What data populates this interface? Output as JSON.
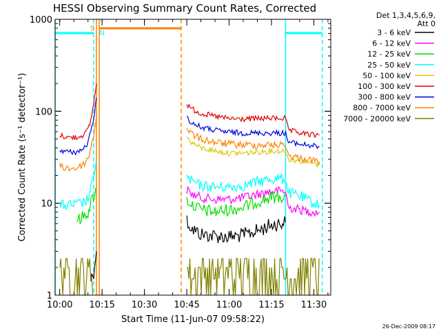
{
  "chart_data": {
    "type": "line",
    "title": "HESSI Observing Summary Count Rates, Corrected",
    "xlabel": "Start Time (11-Jun-07 09:58:22)",
    "ylabel": "Corrected Count Rate (s⁻¹ detector⁻¹)",
    "yscale": "log",
    "ylim": [
      1,
      1000
    ],
    "xlim": [
      "09:58:22",
      "11:36:00"
    ],
    "x_ticks": [
      "10:00",
      "10:15",
      "10:30",
      "10:45",
      "11:00",
      "11:15",
      "11:30"
    ],
    "y_ticks": [
      "1",
      "10",
      "100",
      "1000"
    ],
    "grid": false,
    "legend": {
      "placement": "right",
      "header_line1": "Det 1,3,4,5,6,9,",
      "header_line2": "Att 0"
    },
    "series": [
      {
        "name": "3 - 6 keV",
        "color": "#000000",
        "segments": [
          {
            "x": [
              "10:11",
              "10:12",
              "10:13"
            ],
            "y": [
              1.5,
              1.8,
              3.0
            ]
          },
          {
            "x": [
              "10:45",
              "10:47",
              "10:50",
              "10:55",
              "11:00",
              "11:05",
              "11:10",
              "11:15",
              "11:20"
            ],
            "y": [
              6.5,
              5.2,
              4.6,
              4.4,
              4.3,
              4.5,
              5.0,
              5.8,
              6.2
            ]
          }
        ]
      },
      {
        "name": "6 - 12 keV",
        "color": "#ff00ff",
        "segments": [
          {
            "x": [
              "10:45",
              "10:47",
              "10:50",
              "10:55",
              "11:00",
              "11:05",
              "11:10",
              "11:15",
              "11:20",
              "11:21",
              "11:25",
              "11:30",
              "11:32"
            ],
            "y": [
              14.0,
              12.5,
              11.5,
              11.0,
              11.0,
              11.5,
              12.5,
              13.5,
              13.5,
              9.0,
              8.5,
              8.0,
              8.0
            ]
          }
        ]
      },
      {
        "name": "12 - 25 keV",
        "color": "#00dd00",
        "segments": [
          {
            "x": [
              "10:06",
              "10:08",
              "10:10",
              "10:11",
              "10:12",
              "10:13"
            ],
            "y": [
              6.5,
              7.0,
              8.0,
              10.0,
              12.0,
              14.0
            ]
          },
          {
            "x": [
              "10:45",
              "10:47",
              "10:50",
              "10:55",
              "11:00",
              "11:05",
              "11:10",
              "11:15",
              "11:20"
            ],
            "y": [
              11.0,
              9.5,
              8.5,
              8.0,
              8.5,
              9.0,
              10.5,
              11.5,
              12.0
            ]
          }
        ]
      },
      {
        "name": "25 - 50 keV",
        "color": "#00ffff",
        "segments": [
          {
            "x": [
              "10:00",
              "10:03",
              "10:06",
              "10:08",
              "10:10",
              "10:11",
              "10:12",
              "10:13"
            ],
            "y": [
              9.5,
              9.5,
              9.7,
              10.0,
              11.0,
              14.0,
              20.0,
              30.0
            ]
          },
          {
            "x": [
              "10:45",
              "10:47",
              "10:50",
              "10:55",
              "11:00",
              "11:05",
              "11:10",
              "11:15",
              "11:20",
              "11:21",
              "11:25",
              "11:30",
              "11:32"
            ],
            "y": [
              19.0,
              17.0,
              15.5,
              15.0,
              15.0,
              15.5,
              17.0,
              18.5,
              18.5,
              13.0,
              12.0,
              10.0,
              9.5
            ]
          }
        ]
      },
      {
        "name": "50 - 100 keV",
        "color": "#d8c800",
        "segments": [
          {
            "x": [
              "10:45",
              "10:47",
              "10:50",
              "10:55",
              "11:00",
              "11:05",
              "11:10",
              "11:15",
              "11:20",
              "11:21",
              "11:25",
              "11:30",
              "11:32"
            ],
            "y": [
              52.0,
              45.0,
              40.0,
              37.0,
              35.0,
              35.0,
              36.0,
              37.0,
              37.0,
              30.0,
              29.0,
              27.0,
              26.0
            ]
          }
        ]
      },
      {
        "name": "100 - 300 keV",
        "color": "#dd0000",
        "segments": [
          {
            "x": [
              "10:00",
              "10:03",
              "10:06",
              "10:08",
              "10:10",
              "10:11",
              "10:12",
              "10:13"
            ],
            "y": [
              55.0,
              52.0,
              52.0,
              55.0,
              62.0,
              80.0,
              120.0,
              200.0
            ]
          },
          {
            "x": [
              "10:45",
              "10:47",
              "10:50",
              "10:55",
              "11:00",
              "11:05",
              "11:10",
              "11:15",
              "11:20",
              "11:21",
              "11:25",
              "11:30",
              "11:32"
            ],
            "y": [
              120.0,
              105.0,
              95.0,
              88.0,
              83.0,
              82.0,
              83.0,
              84.0,
              84.0,
              62.0,
              58.0,
              55.0,
              55.0
            ]
          }
        ]
      },
      {
        "name": "300 - 800 keV",
        "color": "#0000dd",
        "segments": [
          {
            "x": [
              "10:00",
              "10:03",
              "10:06",
              "10:08",
              "10:10",
              "10:11",
              "10:12",
              "10:13"
            ],
            "y": [
              38.0,
              36.0,
              36.0,
              38.0,
              45.0,
              60.0,
              85.0,
              140.0
            ]
          },
          {
            "x": [
              "10:45",
              "10:47",
              "10:50",
              "10:55",
              "11:00",
              "11:05",
              "11:10",
              "11:15",
              "11:20",
              "11:21",
              "11:25",
              "11:30",
              "11:32"
            ],
            "y": [
              85.0,
              74.0,
              67.0,
              62.0,
              59.0,
              58.0,
              58.0,
              58.0,
              58.0,
              46.0,
              44.0,
              42.0,
              41.0
            ]
          }
        ]
      },
      {
        "name": "800 - 7000 keV",
        "color": "#ff8000",
        "segments": [
          {
            "x": [
              "10:00",
              "10:03",
              "10:06",
              "10:08",
              "10:10",
              "10:11",
              "10:12",
              "10:13"
            ],
            "y": [
              25.0,
              24.0,
              24.0,
              26.0,
              30.0,
              40.0,
              55.0,
              90.0
            ]
          },
          {
            "x": [
              "10:45",
              "10:47",
              "10:50",
              "10:55",
              "11:00",
              "11:05",
              "11:10",
              "11:15",
              "11:20",
              "11:21",
              "11:25",
              "11:30",
              "11:32"
            ],
            "y": [
              65.0,
              56.0,
              50.0,
              46.0,
              44.0,
              43.0,
              43.0,
              43.0,
              43.0,
              33.0,
              31.0,
              29.0,
              28.0
            ]
          }
        ]
      },
      {
        "name": "7000 - 20000 keV",
        "color": "#808000",
        "segments": [
          {
            "x": [
              "10:00",
              "10:06",
              "10:12"
            ],
            "y": [
              1.5,
              1.5,
              1.5
            ]
          },
          {
            "x": [
              "10:45",
              "11:00",
              "11:15",
              "11:21",
              "11:32"
            ],
            "y": [
              1.5,
              1.5,
              1.5,
              1.5,
              1.5
            ]
          }
        ]
      }
    ],
    "annotations": {
      "flags": [
        {
          "label": "S",
          "at": "10:13",
          "color": "#ff8000"
        },
        {
          "label": "N",
          "at": "10:14",
          "color": "#00ffff"
        }
      ],
      "orange_bar": {
        "from": "10:14",
        "to": "10:43",
        "color": "#ff8000"
      },
      "cyan_bars": [
        {
          "from": "09:58:22",
          "to": "10:12",
          "color": "#00ffff"
        },
        {
          "from": "11:20",
          "to": "11:33",
          "color": "#00ffff"
        }
      ],
      "vlines": [
        {
          "at": "09:58:22",
          "color": "#00ffff",
          "style": "solid"
        },
        {
          "at": "10:12",
          "color": "#00ffff",
          "style": "dashed"
        },
        {
          "at": "10:13",
          "color": "#ff8000",
          "style": "solid"
        },
        {
          "at": "10:14",
          "color": "#ff8000",
          "style": "solid"
        },
        {
          "at": "10:43",
          "color": "#ff8000",
          "style": "dashed"
        },
        {
          "at": "11:20",
          "color": "#00ffff",
          "style": "solid"
        },
        {
          "at": "11:33",
          "color": "#00ffff",
          "style": "dashed"
        }
      ]
    },
    "footer": "26-Dec-2009 08:17"
  }
}
